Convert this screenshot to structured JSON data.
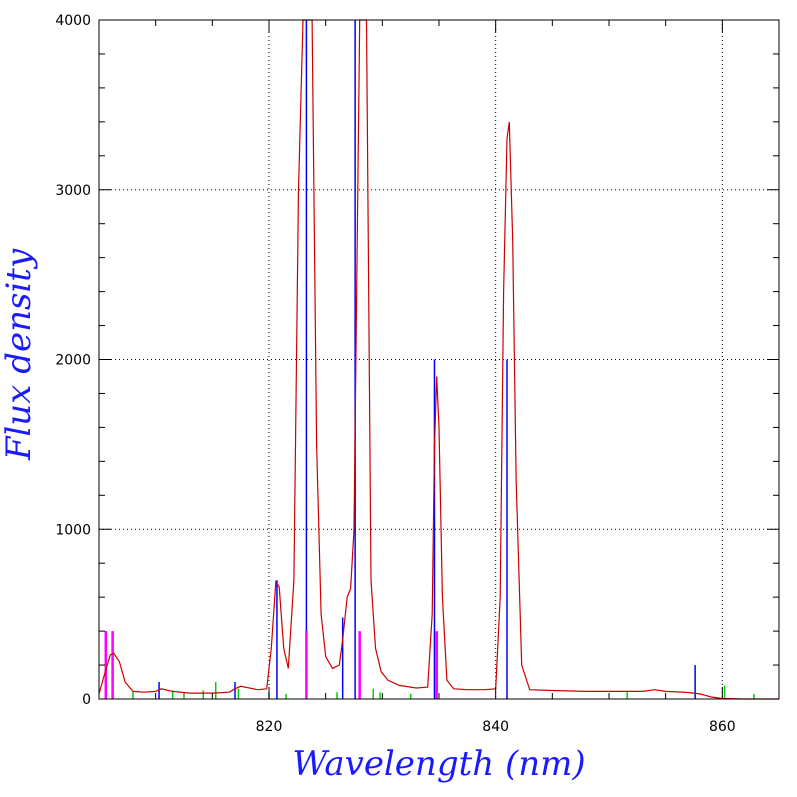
{
  "chart_data": {
    "type": "line",
    "xlabel": "Wavelength (nm)",
    "ylabel": "Flux density",
    "xlim": [
      805,
      865
    ],
    "ylim": [
      0,
      4000
    ],
    "x_ticks": [
      820,
      840,
      860
    ],
    "y_ticks": [
      0,
      1000,
      2000,
      3000,
      4000
    ],
    "grid": true,
    "colors": {
      "spectrum": "#cc0000",
      "blue_lines": "#0000ff",
      "magenta_lines": "#ff00ff",
      "green_lines": "#00cc00",
      "axis_title": "#1a1aff"
    },
    "series": [
      {
        "x": [
          805.0,
          805.5,
          806.0,
          806.3,
          806.8,
          807.3,
          808.0,
          809.0,
          810.0,
          810.5,
          811.5,
          813.0,
          815.0,
          816.5,
          817.0,
          817.5,
          819.0,
          819.8,
          820.2,
          820.6,
          820.9,
          821.3,
          821.7,
          822.2,
          822.6,
          823.0,
          823.8,
          824.2,
          824.6,
          825.0,
          825.6,
          826.2,
          826.5,
          826.9,
          827.2,
          827.5,
          828.0,
          828.6,
          829.0,
          829.4,
          829.9,
          830.5,
          831.5,
          833.0,
          834.0,
          834.4,
          834.6,
          834.8,
          835.0,
          835.3,
          835.7,
          836.3,
          837.5,
          839.0,
          840.0,
          840.4,
          840.7,
          841.0,
          841.2,
          841.5,
          841.8,
          842.3,
          843.0,
          845.0,
          848.0,
          851.0,
          853.0,
          854.0,
          855.0,
          856.0,
          857.0,
          858.0,
          858.5,
          859.0,
          860.0,
          862.0,
          865.0
        ],
        "y": [
          30,
          150,
          260,
          270,
          220,
          100,
          45,
          40,
          45,
          60,
          45,
          35,
          35,
          40,
          60,
          75,
          55,
          60,
          300,
          690,
          660,
          300,
          180,
          700,
          3000,
          4000,
          4000,
          1500,
          500,
          250,
          180,
          200,
          350,
          600,
          650,
          1000,
          4000,
          4000,
          700,
          300,
          160,
          110,
          80,
          65,
          70,
          500,
          1500,
          1900,
          1600,
          600,
          110,
          60,
          55,
          55,
          60,
          600,
          2400,
          3300,
          3400,
          2700,
          1300,
          200,
          55,
          50,
          45,
          45,
          45,
          55,
          45,
          42,
          38,
          30,
          22,
          12,
          3,
          0,
          0
        ]
      }
    ],
    "line_markers": {
      "blue": [
        {
          "x": 805.6,
          "y": 400
        },
        {
          "x": 810.3,
          "y": 100
        },
        {
          "x": 817.0,
          "y": 100
        },
        {
          "x": 820.7,
          "y": 700
        },
        {
          "x": 823.3,
          "y": 4000
        },
        {
          "x": 826.5,
          "y": 480
        },
        {
          "x": 827.6,
          "y": 4000
        },
        {
          "x": 834.6,
          "y": 2000
        },
        {
          "x": 841.0,
          "y": 2000
        },
        {
          "x": 857.6,
          "y": 200
        }
      ],
      "magenta": [
        {
          "x": 805.6,
          "y": 400
        },
        {
          "x": 806.2,
          "y": 400
        },
        {
          "x": 823.3,
          "y": 400
        },
        {
          "x": 828.0,
          "y": 400
        },
        {
          "x": 834.8,
          "y": 400
        }
      ],
      "green": [
        {
          "x": 808.0,
          "y": 40
        },
        {
          "x": 811.5,
          "y": 50
        },
        {
          "x": 812.5,
          "y": 40
        },
        {
          "x": 814.2,
          "y": 50
        },
        {
          "x": 815.3,
          "y": 100
        },
        {
          "x": 817.3,
          "y": 60
        },
        {
          "x": 820.0,
          "y": 40
        },
        {
          "x": 821.5,
          "y": 30
        },
        {
          "x": 826.0,
          "y": 40
        },
        {
          "x": 829.2,
          "y": 60
        },
        {
          "x": 829.8,
          "y": 40
        },
        {
          "x": 832.5,
          "y": 30
        },
        {
          "x": 851.6,
          "y": 40
        },
        {
          "x": 860.2,
          "y": 80
        },
        {
          "x": 862.8,
          "y": 30
        }
      ]
    }
  }
}
